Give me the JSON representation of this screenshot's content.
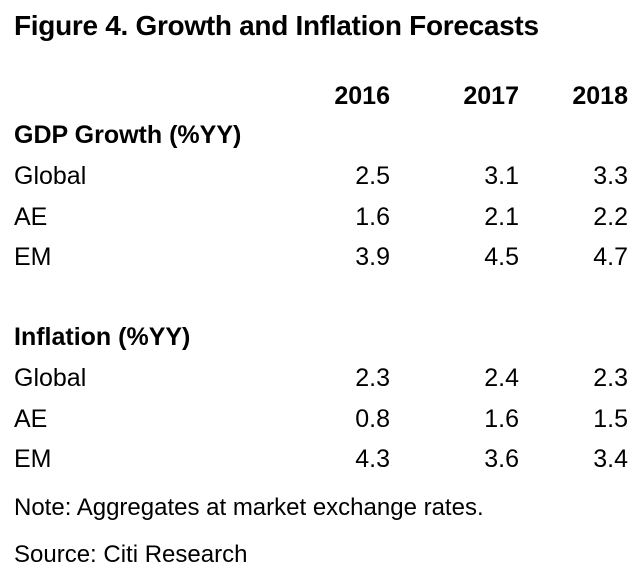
{
  "title": "Figure 4. Growth and Inflation Forecasts",
  "chart_data": {
    "type": "table",
    "title": "Figure 4. Growth and Inflation Forecasts",
    "columns": [
      "2016",
      "2017",
      "2018"
    ],
    "sections": [
      {
        "name": "GDP Growth (%YY)",
        "rows": [
          {
            "label": "Global",
            "values": [
              "2.5",
              "3.1",
              "3.3"
            ]
          },
          {
            "label": "AE",
            "values": [
              "1.6",
              "2.1",
              "2.2"
            ]
          },
          {
            "label": "EM",
            "values": [
              "3.9",
              "4.5",
              "4.7"
            ]
          }
        ]
      },
      {
        "name": "Inflation (%YY)",
        "rows": [
          {
            "label": "Global",
            "values": [
              "2.3",
              "2.4",
              "2.3"
            ]
          },
          {
            "label": "AE",
            "values": [
              "0.8",
              "1.6",
              "1.5"
            ]
          },
          {
            "label": "EM",
            "values": [
              "4.3",
              "3.6",
              "3.4"
            ]
          }
        ]
      }
    ],
    "note": "Note: Aggregates at market exchange rates.",
    "source": "Source: Citi Research"
  }
}
